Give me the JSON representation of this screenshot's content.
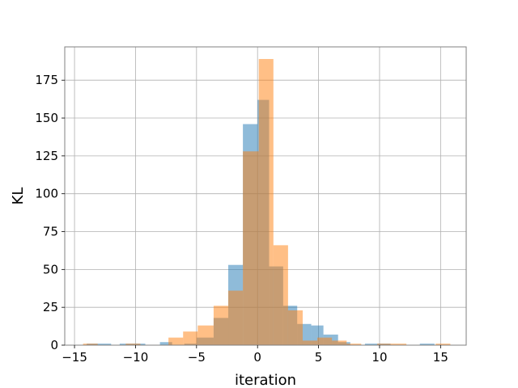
{
  "chart_data": {
    "type": "bar",
    "subtype": "overlaid-histogram",
    "title": "",
    "xlabel": "iteration",
    "ylabel": "KL",
    "xlim": [
      -15.8,
      17.1
    ],
    "ylim": [
      0,
      197
    ],
    "grid": true,
    "legend": "none",
    "x_ticks": [
      -15,
      -10,
      -5,
      0,
      5,
      10,
      15
    ],
    "y_ticks": [
      0,
      25,
      50,
      75,
      100,
      125,
      150,
      175
    ],
    "series": [
      {
        "color": "#1f77b4",
        "opacity": 0.5,
        "bins": [
          {
            "x0": -14.0,
            "x1": -12.0,
            "count": 1
          },
          {
            "x0": -11.3,
            "x1": -9.2,
            "count": 1
          },
          {
            "x0": -8.0,
            "x1": -7.0,
            "count": 2
          },
          {
            "x0": -6.0,
            "x1": -5.0,
            "count": 1
          },
          {
            "x0": -5.0,
            "x1": -3.6,
            "count": 5
          },
          {
            "x0": -3.6,
            "x1": -2.4,
            "count": 18
          },
          {
            "x0": -2.4,
            "x1": -1.2,
            "count": 53
          },
          {
            "x0": -1.2,
            "x1": 0.0,
            "count": 146
          },
          {
            "x0": 0.0,
            "x1": 0.95,
            "count": 162
          },
          {
            "x0": 0.95,
            "x1": 2.1,
            "count": 52
          },
          {
            "x0": 2.1,
            "x1": 3.25,
            "count": 26
          },
          {
            "x0": 3.25,
            "x1": 4.4,
            "count": 14
          },
          {
            "x0": 4.4,
            "x1": 5.4,
            "count": 13
          },
          {
            "x0": 5.4,
            "x1": 6.6,
            "count": 7
          },
          {
            "x0": 6.6,
            "x1": 7.6,
            "count": 2
          },
          {
            "x0": 8.8,
            "x1": 10.9,
            "count": 1
          },
          {
            "x0": 13.3,
            "x1": 14.5,
            "count": 1
          }
        ]
      },
      {
        "color": "#ff7f0e",
        "opacity": 0.5,
        "bins": [
          {
            "x0": -14.3,
            "x1": -13.1,
            "count": 1
          },
          {
            "x0": -10.8,
            "x1": -9.6,
            "count": 1
          },
          {
            "x0": -7.3,
            "x1": -6.1,
            "count": 5
          },
          {
            "x0": -6.1,
            "x1": -4.9,
            "count": 9
          },
          {
            "x0": -4.9,
            "x1": -3.6,
            "count": 13
          },
          {
            "x0": -3.6,
            "x1": -2.4,
            "count": 26
          },
          {
            "x0": -2.4,
            "x1": -1.2,
            "count": 36
          },
          {
            "x0": -1.2,
            "x1": 0.1,
            "count": 128
          },
          {
            "x0": 0.1,
            "x1": 1.3,
            "count": 189
          },
          {
            "x0": 1.3,
            "x1": 2.5,
            "count": 66
          },
          {
            "x0": 2.5,
            "x1": 3.7,
            "count": 23
          },
          {
            "x0": 3.7,
            "x1": 4.9,
            "count": 3
          },
          {
            "x0": 4.9,
            "x1": 6.1,
            "count": 5
          },
          {
            "x0": 6.1,
            "x1": 7.3,
            "count": 3
          },
          {
            "x0": 7.3,
            "x1": 8.5,
            "count": 1
          },
          {
            "x0": 9.8,
            "x1": 11.0,
            "count": 1
          },
          {
            "x0": 11.0,
            "x1": 12.2,
            "count": 1
          },
          {
            "x0": 14.6,
            "x1": 15.8,
            "count": 1
          }
        ]
      }
    ]
  }
}
